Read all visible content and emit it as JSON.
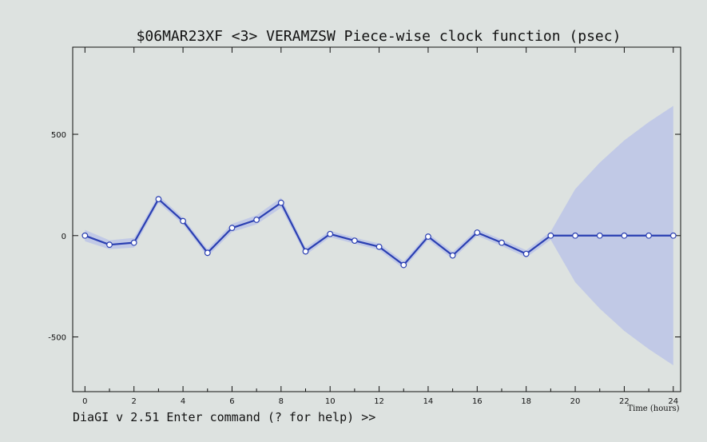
{
  "chart_data": {
    "type": "line",
    "title": "$06MAR23XF <3>  VERAMZSW  Piece-wise clock function (psec)",
    "xlabel": "Time (hours)",
    "ylabel": "",
    "xlim": [
      -0.5,
      24.3
    ],
    "ylim": [
      -770,
      930
    ],
    "x_ticks": [
      "0",
      "2",
      "4",
      "6",
      "8",
      "10",
      "12",
      "14",
      "16",
      "18",
      "20",
      "22",
      "24"
    ],
    "y_ticks": [
      "500",
      "0",
      "-500"
    ],
    "grid": false,
    "series": [
      {
        "x": [
          0,
          1,
          2,
          3,
          4,
          5,
          6,
          7,
          8,
          9,
          10,
          11,
          12,
          13,
          14,
          15,
          16,
          17,
          18,
          19,
          20,
          21,
          22,
          23,
          24
        ],
        "values": [
          0,
          -45,
          -35,
          180,
          72,
          -85,
          38,
          78,
          162,
          -78,
          8,
          -25,
          -55,
          -145,
          -5,
          -98,
          15,
          -35,
          -90,
          0,
          0,
          0,
          0,
          0,
          0
        ],
        "error": [
          28,
          22,
          24,
          18,
          16,
          18,
          20,
          22,
          25,
          18,
          16,
          15,
          16,
          18,
          16,
          18,
          16,
          16,
          18,
          20,
          230,
          360,
          470,
          560,
          640
        ]
      }
    ],
    "colors": {
      "line": "#2a3fb2",
      "band": "#b7c0e8",
      "background": "#dde2e0",
      "axes": "#111111"
    }
  },
  "status_bar": {
    "prompt": "DiaGI v 2.51  Enter command (? for help) >>"
  }
}
